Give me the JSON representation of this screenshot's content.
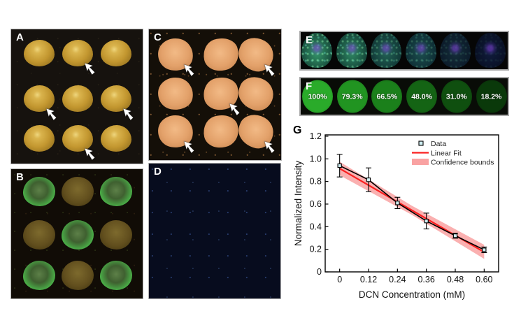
{
  "panels": {
    "a": {
      "label": "A",
      "description": "seeds-visible-light",
      "arrow_marked_cells": [
        [
          0,
          1
        ],
        [
          1,
          0
        ],
        [
          1,
          2
        ],
        [
          2,
          1
        ]
      ]
    },
    "b": {
      "label": "B",
      "description": "seeds-uv-fluorescence",
      "bright_cells": [
        [
          0,
          0
        ],
        [
          0,
          2
        ],
        [
          1,
          1
        ],
        [
          2,
          0
        ],
        [
          2,
          2
        ]
      ]
    },
    "c": {
      "label": "C",
      "description": "powder-visible-light",
      "arrow_marked_cells": [
        [
          0,
          0
        ],
        [
          0,
          2
        ],
        [
          1,
          1
        ],
        [
          2,
          0
        ],
        [
          2,
          2
        ]
      ]
    },
    "d": {
      "label": "D",
      "description": "powder-uv-fluorescence",
      "bright_cells": [
        [
          0,
          1
        ],
        [
          1,
          0
        ],
        [
          1,
          2
        ],
        [
          2,
          1
        ]
      ]
    },
    "e": {
      "label": "E",
      "description": "capsules-uv-decreasing-fluorescence",
      "capsule_colors": [
        [
          "#35996b",
          "#123d33"
        ],
        [
          "#2f8a64",
          "#103831"
        ],
        [
          "#226355",
          "#0e2f30"
        ],
        [
          "#1b4f4e",
          "#0c2730"
        ],
        [
          "#142e3a",
          "#0a1626"
        ],
        [
          "#101c3c",
          "#070d1f"
        ]
      ],
      "speckle_alpha": [
        0.5,
        0.42,
        0.3,
        0.22,
        0.12,
        0.06
      ],
      "spot_color": "rgba(128,64,216,0.55)"
    },
    "f": {
      "label": "F",
      "description": "normalized-intensity-discs",
      "values": [
        "100%",
        "79.3%",
        "66.5%",
        "48.0%",
        "31.0%",
        "18.2%"
      ],
      "colors": [
        "#2aab2a",
        "#219421",
        "#1b801b",
        "#146414",
        "#0f4f0f",
        "#0a390a"
      ],
      "text_color": "#ffffff"
    },
    "g": {
      "label": "G"
    }
  },
  "chart_data": {
    "type": "line",
    "title": "",
    "xlabel": "DCN Concentration (mM)",
    "ylabel": "Normalized Intensity",
    "x": [
      0,
      0.12,
      0.24,
      0.36,
      0.48,
      0.6
    ],
    "y": [
      0.94,
      0.815,
      0.61,
      0.45,
      0.32,
      0.195
    ],
    "yerr": [
      0.1,
      0.105,
      0.05,
      0.07,
      0.022,
      0.025
    ],
    "fit": {
      "x": [
        0,
        0.6
      ],
      "y": [
        0.915,
        0.175
      ]
    },
    "confidence_band": {
      "x": [
        0,
        0.3,
        0.6
      ],
      "upper": [
        0.975,
        0.585,
        0.24
      ],
      "lower": [
        0.855,
        0.505,
        0.115
      ]
    },
    "xticks": [
      "0",
      "0.12",
      "0.24",
      "0.36",
      "0.48",
      "0.60"
    ],
    "xtick_values": [
      0,
      0.12,
      0.24,
      0.36,
      0.48,
      0.6
    ],
    "yticks": [
      "0",
      "0.2",
      "0.4",
      "0.6",
      "0.8",
      "1.0",
      "1.2"
    ],
    "ytick_values": [
      0,
      0.2,
      0.4,
      0.6,
      0.8,
      1.0,
      1.2
    ],
    "xlim": [
      -0.06,
      0.66
    ],
    "ylim": [
      0,
      1.212
    ],
    "grid": false,
    "legend": [
      "Data",
      "Linear Fit",
      "Confidence bounds"
    ],
    "legend_position": "top-right",
    "colors": {
      "data_line": "#000000",
      "marker_fill": "#cfeef2",
      "marker_edge": "#000000",
      "fit_line": "#fb2020",
      "band": "#f9a2a2"
    }
  }
}
